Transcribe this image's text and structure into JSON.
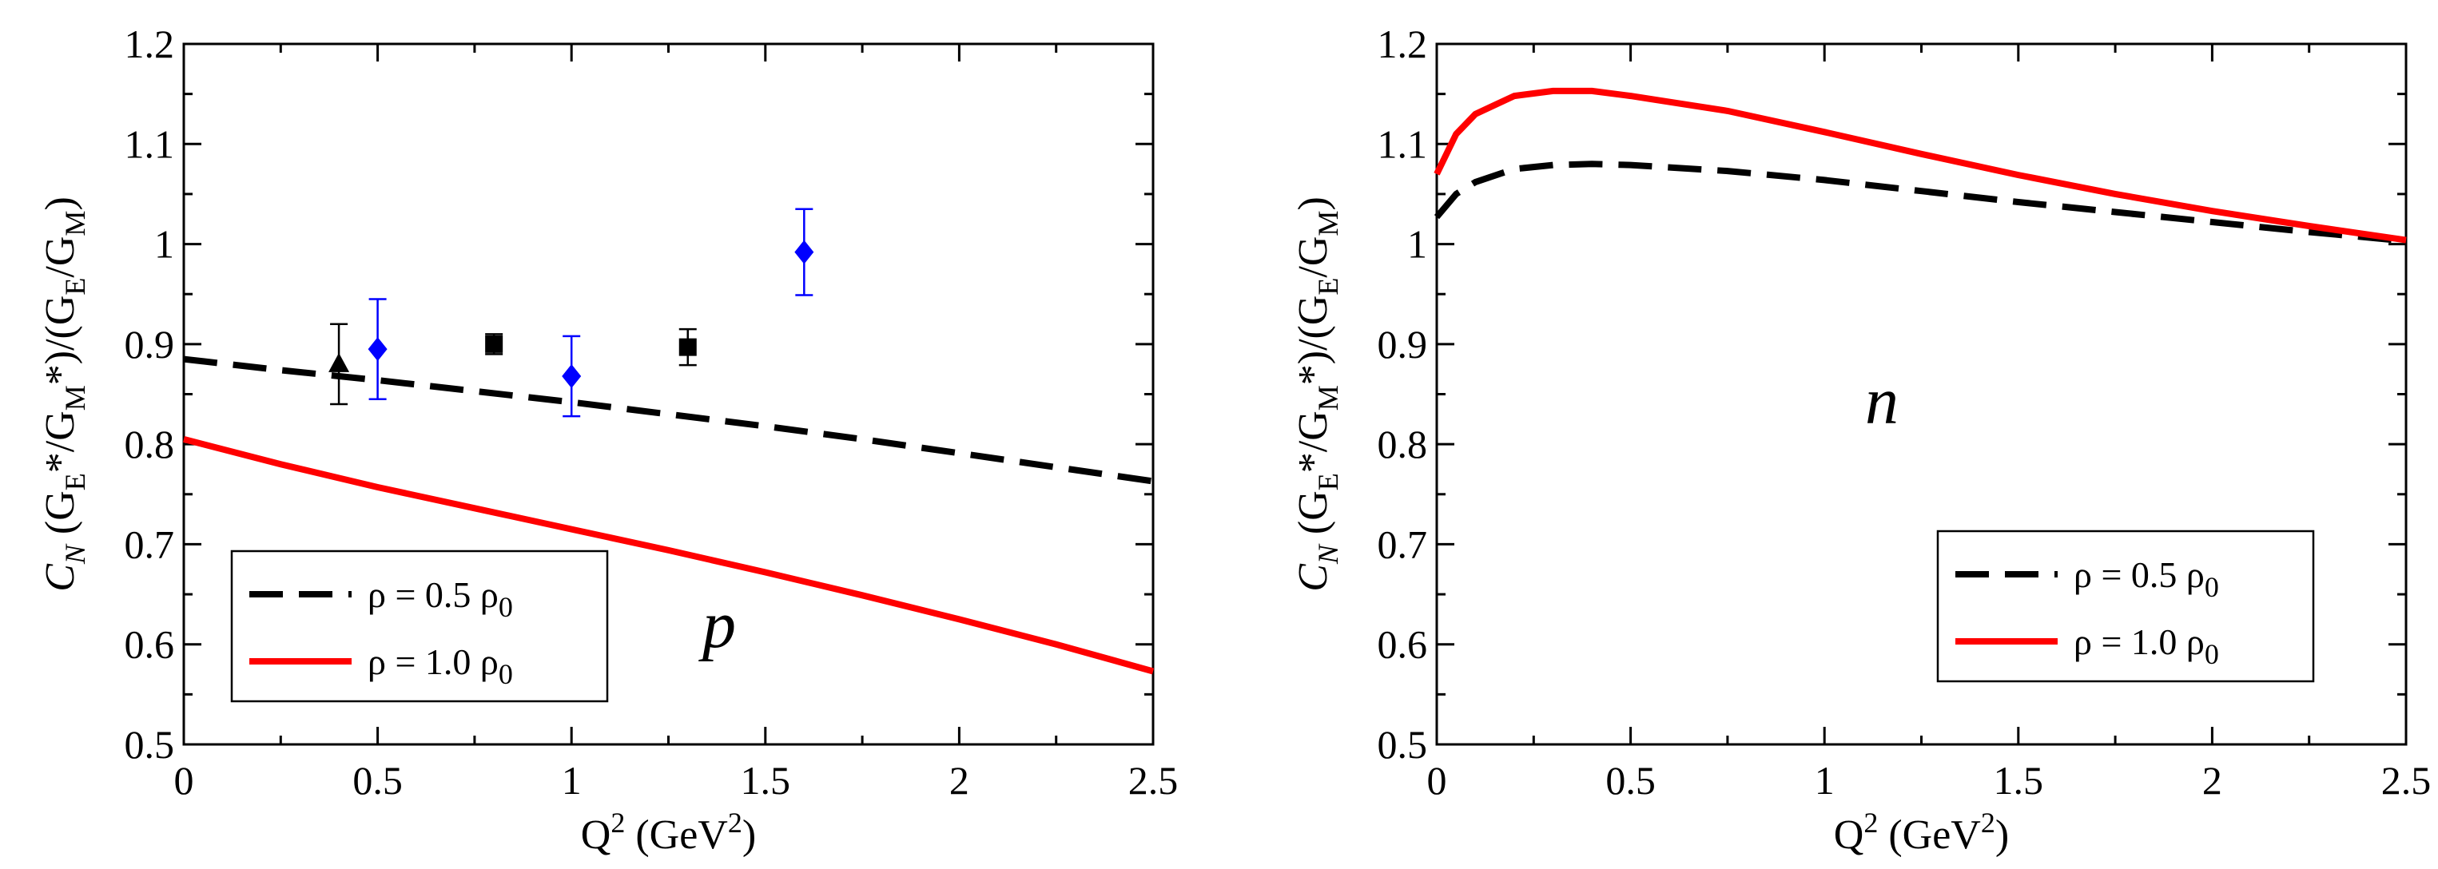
{
  "chart_data": [
    {
      "type": "line",
      "panel_label": "p",
      "xlabel": "Q² (GeV²)",
      "ylabel": "C_N (G_E*/G_M*)/(G_E/G_M)",
      "xlim": [
        0,
        2.5
      ],
      "ylim": [
        0.5,
        1.2
      ],
      "x_ticks": [
        0,
        0.5,
        1,
        1.5,
        2,
        2.5
      ],
      "x_tick_labels": [
        "0",
        "0.5",
        "1",
        "1.5",
        "2",
        "2.5"
      ],
      "y_ticks": [
        0.5,
        0.6,
        0.7,
        0.8,
        0.9,
        1.0,
        1.1,
        1.2
      ],
      "y_tick_labels": [
        "0.5",
        "0.6",
        "0.7",
        "0.8",
        "0.9",
        "1",
        "1.1",
        "1.2"
      ],
      "legend_position": "bottom-left",
      "series": [
        {
          "name": "ρ = 0.5 ρ0",
          "style": "dashed",
          "color": "#000000",
          "x": [
            0,
            0.25,
            0.5,
            0.75,
            1.0,
            1.25,
            1.5,
            1.75,
            2.0,
            2.25,
            2.5
          ],
          "y": [
            0.885,
            0.874,
            0.864,
            0.853,
            0.842,
            0.83,
            0.818,
            0.805,
            0.791,
            0.777,
            0.763
          ]
        },
        {
          "name": "ρ = 1.0 ρ0",
          "style": "solid",
          "color": "#ff0000",
          "x": [
            0,
            0.25,
            0.5,
            0.75,
            1.0,
            1.25,
            1.5,
            1.75,
            2.0,
            2.25,
            2.5
          ],
          "y": [
            0.805,
            0.78,
            0.757,
            0.736,
            0.715,
            0.694,
            0.672,
            0.649,
            0.625,
            0.6,
            0.573
          ]
        }
      ],
      "points": [
        {
          "set": "triangle",
          "marker": "triangle",
          "color": "#000000",
          "x": 0.4,
          "y": 0.88,
          "err": 0.04
        },
        {
          "set": "squares",
          "marker": "square",
          "color": "#000000",
          "x": 0.8,
          "y": 0.9,
          "err": 0.01
        },
        {
          "set": "squares",
          "marker": "square",
          "color": "#000000",
          "x": 1.3,
          "y": 0.897,
          "err": 0.018
        },
        {
          "set": "diamonds",
          "marker": "diamond",
          "color": "#0000ff",
          "x": 0.5,
          "y": 0.895,
          "err": 0.05
        },
        {
          "set": "diamonds",
          "marker": "diamond",
          "color": "#0000ff",
          "x": 1.0,
          "y": 0.868,
          "err": 0.04
        },
        {
          "set": "diamonds",
          "marker": "diamond",
          "color": "#0000ff",
          "x": 1.6,
          "y": 0.992,
          "err": 0.043
        }
      ]
    },
    {
      "type": "line",
      "panel_label": "n",
      "xlabel": "Q² (GeV²)",
      "ylabel": "C_N (G_E*/G_M*)/(G_E/G_M)",
      "xlim": [
        0,
        2.5
      ],
      "ylim": [
        0.5,
        1.2
      ],
      "x_ticks": [
        0,
        0.5,
        1,
        1.5,
        2,
        2.5
      ],
      "x_tick_labels": [
        "0",
        "0.5",
        "1",
        "1.5",
        "2",
        "2.5"
      ],
      "y_ticks": [
        0.5,
        0.6,
        0.7,
        0.8,
        0.9,
        1.0,
        1.1,
        1.2
      ],
      "y_tick_labels": [
        "0.5",
        "0.6",
        "0.7",
        "0.8",
        "0.9",
        "1",
        "1.1",
        "1.2"
      ],
      "legend_position": "bottom-right",
      "series": [
        {
          "name": "ρ = 0.5 ρ0",
          "style": "dashed",
          "color": "#000000",
          "x": [
            0,
            0.05,
            0.1,
            0.2,
            0.3,
            0.4,
            0.5,
            0.75,
            1.0,
            1.25,
            1.5,
            1.75,
            2.0,
            2.25,
            2.5
          ],
          "y": [
            1.027,
            1.05,
            1.062,
            1.075,
            1.079,
            1.08,
            1.079,
            1.073,
            1.064,
            1.053,
            1.042,
            1.032,
            1.022,
            1.012,
            1.003
          ]
        },
        {
          "name": "ρ = 1.0 ρ0",
          "style": "solid",
          "color": "#ff0000",
          "x": [
            0,
            0.05,
            0.1,
            0.2,
            0.3,
            0.4,
            0.5,
            0.75,
            1.0,
            1.25,
            1.5,
            1.75,
            2.0,
            2.25,
            2.5
          ],
          "y": [
            1.07,
            1.11,
            1.13,
            1.148,
            1.153,
            1.153,
            1.148,
            1.133,
            1.112,
            1.09,
            1.069,
            1.05,
            1.033,
            1.018,
            1.004
          ]
        }
      ],
      "points": []
    }
  ]
}
